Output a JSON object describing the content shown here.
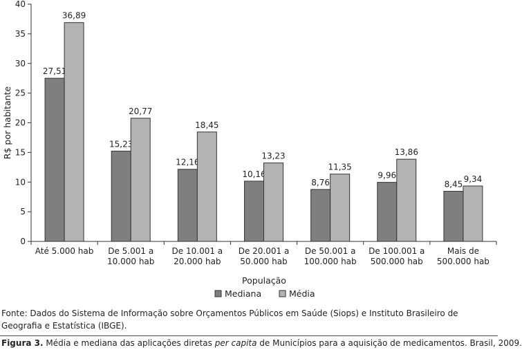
{
  "chart_data": {
    "type": "bar",
    "categories": [
      [
        "Até 5.000 hab"
      ],
      [
        "De 5.001 a",
        "10.000 hab"
      ],
      [
        "De 10.001 a",
        "20.000 hab"
      ],
      [
        "De 20.001 a",
        "50.000 hab"
      ],
      [
        "De 50.001 a",
        "100.000 hab"
      ],
      [
        "De 100.001 a",
        "500.000 hab"
      ],
      [
        "Mais de",
        "500.000 hab"
      ]
    ],
    "series": [
      {
        "name": "Mediana",
        "color": "#7f7f7f",
        "values": [
          27.51,
          15.23,
          12.16,
          10.16,
          8.76,
          9.96,
          8.45
        ],
        "labels": [
          "27,51",
          "15,23",
          "12,16",
          "10,16",
          "8,76",
          "9,96",
          "8,45"
        ]
      },
      {
        "name": "Média",
        "color": "#b3b3b3",
        "values": [
          36.89,
          20.77,
          18.45,
          13.23,
          11.35,
          13.86,
          9.34
        ],
        "labels": [
          "36,89",
          "20,77",
          "18,45",
          "13,23",
          "11,35",
          "13,86",
          "9,34"
        ]
      }
    ],
    "ylabel": "R$ por habitante",
    "xlabel": "População",
    "ylim": [
      0,
      40
    ],
    "yticks": [
      0,
      5,
      10,
      15,
      20,
      25,
      30,
      35,
      40
    ],
    "grid": false,
    "legend": "bottom-center"
  },
  "source": "Fonte: Dados do Sistema de Informação sobre Orçamentos Públicos em Saúde (Siops) e Instituto Brasileiro de Geografia e Estatística (IBGE).",
  "caption": {
    "number": "Figura 3.",
    "text_before": "Média e mediana das aplicações diretas",
    "text_italic": "per capita",
    "text_after": "de Municípios para a aquisição de medicamentos. Brasil, 2009."
  }
}
